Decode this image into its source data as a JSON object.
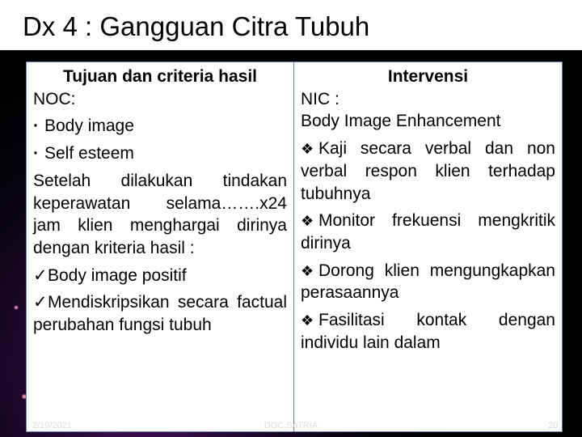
{
  "title": "Dx 4 : Gangguan Citra Tubuh",
  "left": {
    "header": "Tujuan dan criteria hasil",
    "noc_label": "NOC:",
    "b1": "Body image",
    "b2": "Self esteem",
    "para": "Setelah dilakukan tindakan keperawatan selama…….x24 jam klien menghargai dirinya dengan kriteria hasil :",
    "c1": "Body image positif",
    "c2": "Mendiskripsikan secara factual perubahan fungsi tubuh"
  },
  "right": {
    "header": "Intervensi",
    "nic_label": "NIC :",
    "nic_name": "Body Image Enhancement",
    "d1": "Kaji secara verbal dan non verbal respon klien terhadap tubuhnya",
    "d2": "Monitor frekuensi mengkritik dirinya",
    "d3": "Dorong klien mengungkapkan perasaannya",
    "d4": "Fasilitasi kontak dengan individu lain dalam"
  },
  "footer": {
    "date": "2/19/2021",
    "mid": "DOC.SATRIA",
    "page": "20"
  },
  "colors": {
    "table_border": "#6a7aa6",
    "bg_glow": "#6a1b7a"
  }
}
